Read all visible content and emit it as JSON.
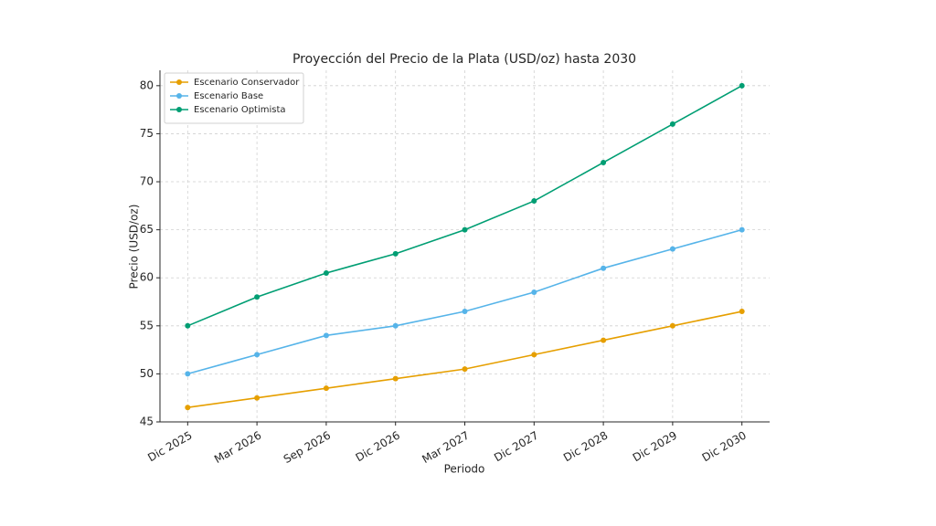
{
  "chart_data": {
    "type": "line",
    "title": "Proyección del Precio de la Plata (USD/oz) hasta 2030",
    "x_label": "Periodo",
    "y_label": "Precio (USD/oz)",
    "categories": [
      "Dic 2025",
      "Mar 2026",
      "Sep 2026",
      "Dic 2026",
      "Mar 2027",
      "Dic 2027",
      "Dic 2028",
      "Dic 2029",
      "Dic 2030"
    ],
    "series": [
      {
        "name": "Escenario Conservador",
        "color": "#e69f00",
        "values": [
          46.5,
          47.5,
          48.5,
          49.5,
          50.5,
          52,
          53.5,
          55,
          56.5
        ]
      },
      {
        "name": "Escenario Base",
        "color": "#56b4e9",
        "values": [
          50,
          52,
          54,
          55,
          56.5,
          58.5,
          61,
          63,
          65
        ]
      },
      {
        "name": "Escenario Optimista",
        "color": "#009e73",
        "values": [
          55,
          58,
          60.5,
          62.5,
          65,
          68,
          72,
          76,
          80
        ]
      }
    ],
    "ylim": [
      45,
      81.6
    ],
    "yticks": [
      45,
      50,
      55,
      60,
      65,
      70,
      75,
      80
    ],
    "grid": true,
    "legend": "upper-left"
  }
}
